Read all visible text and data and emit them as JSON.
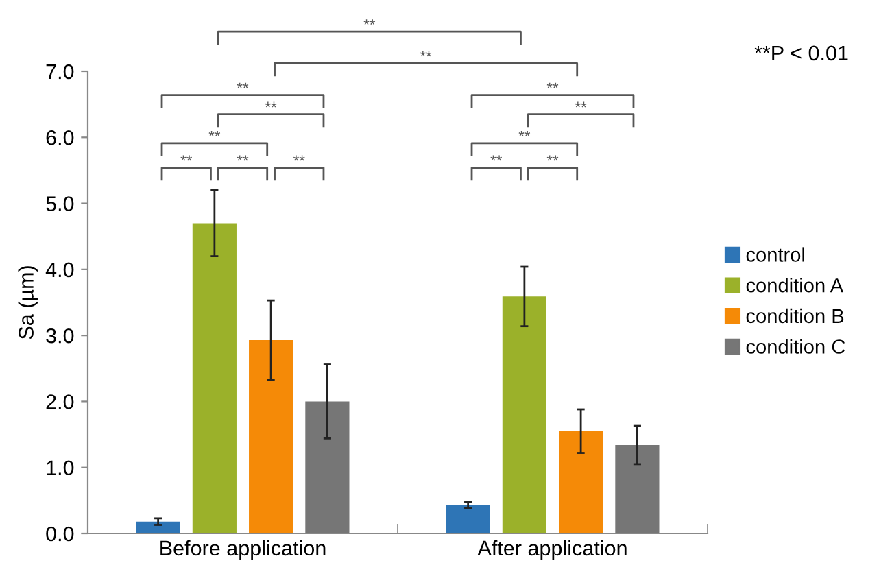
{
  "chart_data": {
    "type": "bar",
    "ylabel": "Sa (µm)",
    "categories": [
      "Before application",
      "After application"
    ],
    "series": [
      {
        "name": "control",
        "color": "#2e75b6",
        "values": [
          0.18,
          0.43
        ],
        "errors": [
          0.05,
          0.05
        ]
      },
      {
        "name": "condition A",
        "color": "#9bb12a",
        "values": [
          4.7,
          3.59
        ],
        "errors": [
          0.5,
          0.45
        ]
      },
      {
        "name": "condition B",
        "color": "#f58a07",
        "values": [
          2.93,
          1.55
        ],
        "errors": [
          0.6,
          0.33
        ]
      },
      {
        "name": "condition C",
        "color": "#767676",
        "values": [
          2.0,
          1.34
        ],
        "errors": [
          0.56,
          0.29
        ]
      }
    ],
    "ylim": [
      0,
      7
    ],
    "yticks": [
      {
        "value": 0,
        "label": "0.0"
      },
      {
        "value": 1,
        "label": "1.0"
      },
      {
        "value": 2,
        "label": "2.0"
      },
      {
        "value": 3,
        "label": "3.0"
      },
      {
        "value": 4,
        "label": "4.0"
      },
      {
        "value": 5,
        "label": "5.0"
      },
      {
        "value": 6,
        "label": "6.0"
      },
      {
        "value": 7,
        "label": "7.0"
      }
    ],
    "grid": false,
    "legend": "right",
    "annotations": [
      "**",
      "**",
      "**",
      "**",
      "**",
      "**",
      "**",
      "**",
      "**",
      "**",
      "**",
      "**",
      "**",
      "**P < 0.01"
    ]
  }
}
